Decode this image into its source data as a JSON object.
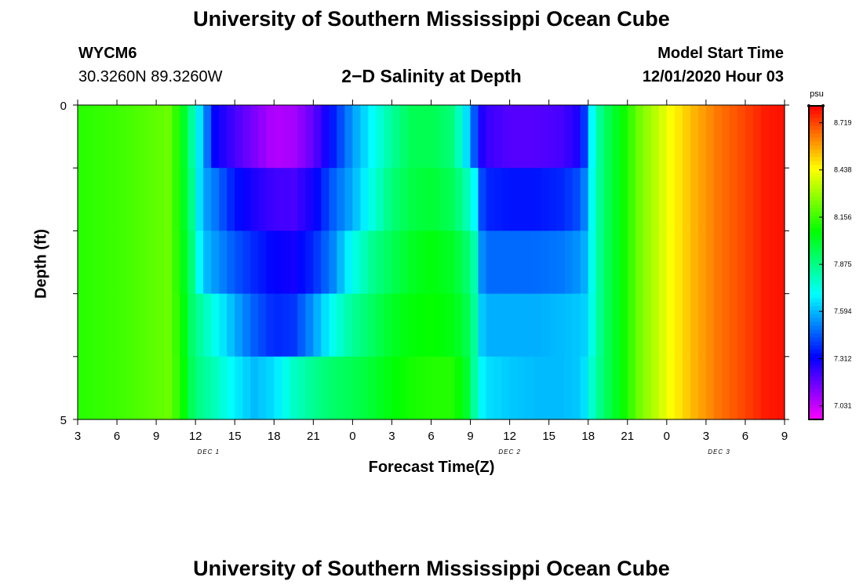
{
  "header": {
    "title": "University of Southern Mississippi Ocean Cube",
    "station_id": "WYCM6",
    "station_coords": "30.3260N 89.3260W",
    "chart_title": "2−D Salinity at Depth",
    "model_start_label": "Model Start Time",
    "model_start_value": "12/01/2020 Hour 03"
  },
  "footer": {
    "title": "University of Southern Mississippi Ocean Cube"
  },
  "chart_data": {
    "type": "heatmap",
    "title": "2−D Salinity at Depth",
    "xlabel": "Forecast Time(Z)",
    "ylabel": "Depth (ft)",
    "x_tick_labels": [
      "3",
      "6",
      "9",
      "12",
      "15",
      "18",
      "21",
      "0",
      "3",
      "6",
      "9",
      "12",
      "15",
      "18",
      "21",
      "0",
      "3",
      "6",
      "9"
    ],
    "x_tick_hours": [
      3,
      6,
      9,
      12,
      15,
      18,
      21,
      24,
      27,
      30,
      33,
      36,
      39,
      42,
      45,
      48,
      51,
      54,
      57
    ],
    "date_labels": [
      {
        "label": "DEC 1",
        "hour": 13
      },
      {
        "label": "DEC 2",
        "hour": 36
      },
      {
        "label": "DEC 3",
        "hour": 52
      }
    ],
    "x_range_hours": [
      3,
      57
    ],
    "y_range": [
      0,
      5
    ],
    "y_tick_labels": [
      "0",
      "5"
    ],
    "depth_rows": [
      0.5,
      1.5,
      2.5,
      3.5,
      4.5
    ],
    "colorbar": {
      "unit": "psu",
      "ticks": [
        8.719,
        8.438,
        8.156,
        7.875,
        7.594,
        7.312,
        7.031
      ],
      "range": [
        6.95,
        8.82
      ]
    },
    "profiles": [
      {
        "hour": 3,
        "values": [
          8.13,
          8.13,
          8.13,
          8.13,
          8.13
        ]
      },
      {
        "hour": 6,
        "values": [
          8.16,
          8.16,
          8.16,
          8.16,
          8.16
        ]
      },
      {
        "hour": 9,
        "values": [
          8.21,
          8.21,
          8.21,
          8.21,
          8.21
        ]
      },
      {
        "hour": 10,
        "values": [
          8.23,
          8.23,
          8.23,
          8.23,
          8.23
        ]
      },
      {
        "hour": 11,
        "values": [
          8.05,
          8.05,
          8.06,
          8.08,
          8.1
        ]
      },
      {
        "hour": 11.8,
        "values": [
          7.82,
          7.85,
          7.88,
          7.9,
          7.92
        ]
      },
      {
        "hour": 12.5,
        "values": [
          7.6,
          7.58,
          7.62,
          7.82,
          7.86
        ]
      },
      {
        "hour": 13.5,
        "values": [
          7.32,
          7.5,
          7.55,
          7.72,
          7.8
        ]
      },
      {
        "hour": 15,
        "values": [
          7.22,
          7.35,
          7.45,
          7.58,
          7.68
        ]
      },
      {
        "hour": 16.5,
        "values": [
          7.14,
          7.28,
          7.38,
          7.46,
          7.6
        ]
      },
      {
        "hour": 18,
        "values": [
          7.06,
          7.23,
          7.32,
          7.38,
          7.65
        ]
      },
      {
        "hour": 19.5,
        "values": [
          7.08,
          7.22,
          7.3,
          7.4,
          7.78
        ]
      },
      {
        "hour": 21,
        "values": [
          7.18,
          7.3,
          7.38,
          7.55,
          7.86
        ]
      },
      {
        "hour": 22.5,
        "values": [
          7.36,
          7.46,
          7.52,
          7.72,
          7.92
        ]
      },
      {
        "hour": 24,
        "values": [
          7.55,
          7.58,
          7.72,
          7.85,
          7.95
        ]
      },
      {
        "hour": 25.5,
        "values": [
          7.7,
          7.74,
          7.86,
          7.93,
          8.0
        ]
      },
      {
        "hour": 27,
        "values": [
          7.85,
          7.9,
          7.95,
          8.02,
          8.06
        ]
      },
      {
        "hour": 28.5,
        "values": [
          7.95,
          7.97,
          8.02,
          8.06,
          8.1
        ]
      },
      {
        "hour": 30,
        "values": [
          7.96,
          8.0,
          8.06,
          8.08,
          8.12
        ]
      },
      {
        "hour": 31.5,
        "values": [
          7.9,
          7.95,
          8.02,
          8.05,
          8.12
        ]
      },
      {
        "hour": 32.5,
        "values": [
          7.72,
          7.85,
          7.95,
          8.0,
          8.06
        ]
      },
      {
        "hour": 33.3,
        "values": [
          7.45,
          7.7,
          7.82,
          7.85,
          7.84
        ]
      },
      {
        "hour": 34,
        "values": [
          7.25,
          7.38,
          7.48,
          7.58,
          7.66
        ]
      },
      {
        "hour": 36,
        "values": [
          7.2,
          7.35,
          7.48,
          7.58,
          7.62
        ]
      },
      {
        "hour": 38,
        "values": [
          7.2,
          7.35,
          7.48,
          7.58,
          7.6
        ]
      },
      {
        "hour": 40,
        "values": [
          7.22,
          7.38,
          7.5,
          7.6,
          7.6
        ]
      },
      {
        "hour": 41.5,
        "values": [
          7.3,
          7.45,
          7.55,
          7.62,
          7.62
        ]
      },
      {
        "hour": 42,
        "values": [
          7.55,
          7.6,
          7.62,
          7.65,
          7.7
        ]
      },
      {
        "hour": 42.5,
        "values": [
          7.8,
          7.8,
          7.8,
          7.8,
          7.82
        ]
      },
      {
        "hour": 43.5,
        "values": [
          7.95,
          7.95,
          7.95,
          7.95,
          7.95
        ]
      },
      {
        "hour": 45,
        "values": [
          8.12,
          8.12,
          8.12,
          8.12,
          8.12
        ]
      },
      {
        "hour": 46,
        "values": [
          8.25,
          8.25,
          8.25,
          8.25,
          8.25
        ]
      },
      {
        "hour": 47,
        "values": [
          8.33,
          8.33,
          8.33,
          8.33,
          8.33
        ]
      },
      {
        "hour": 48,
        "values": [
          8.42,
          8.42,
          8.42,
          8.42,
          8.42
        ]
      },
      {
        "hour": 50,
        "values": [
          8.55,
          8.55,
          8.55,
          8.55,
          8.55
        ]
      },
      {
        "hour": 52,
        "values": [
          8.65,
          8.65,
          8.65,
          8.65,
          8.65
        ]
      },
      {
        "hour": 54,
        "values": [
          8.72,
          8.72,
          8.72,
          8.72,
          8.72
        ]
      },
      {
        "hour": 55.5,
        "values": [
          8.78,
          8.78,
          8.78,
          8.78,
          8.78
        ]
      },
      {
        "hour": 57,
        "values": [
          8.8,
          8.8,
          8.8,
          8.8,
          8.8
        ]
      }
    ]
  }
}
